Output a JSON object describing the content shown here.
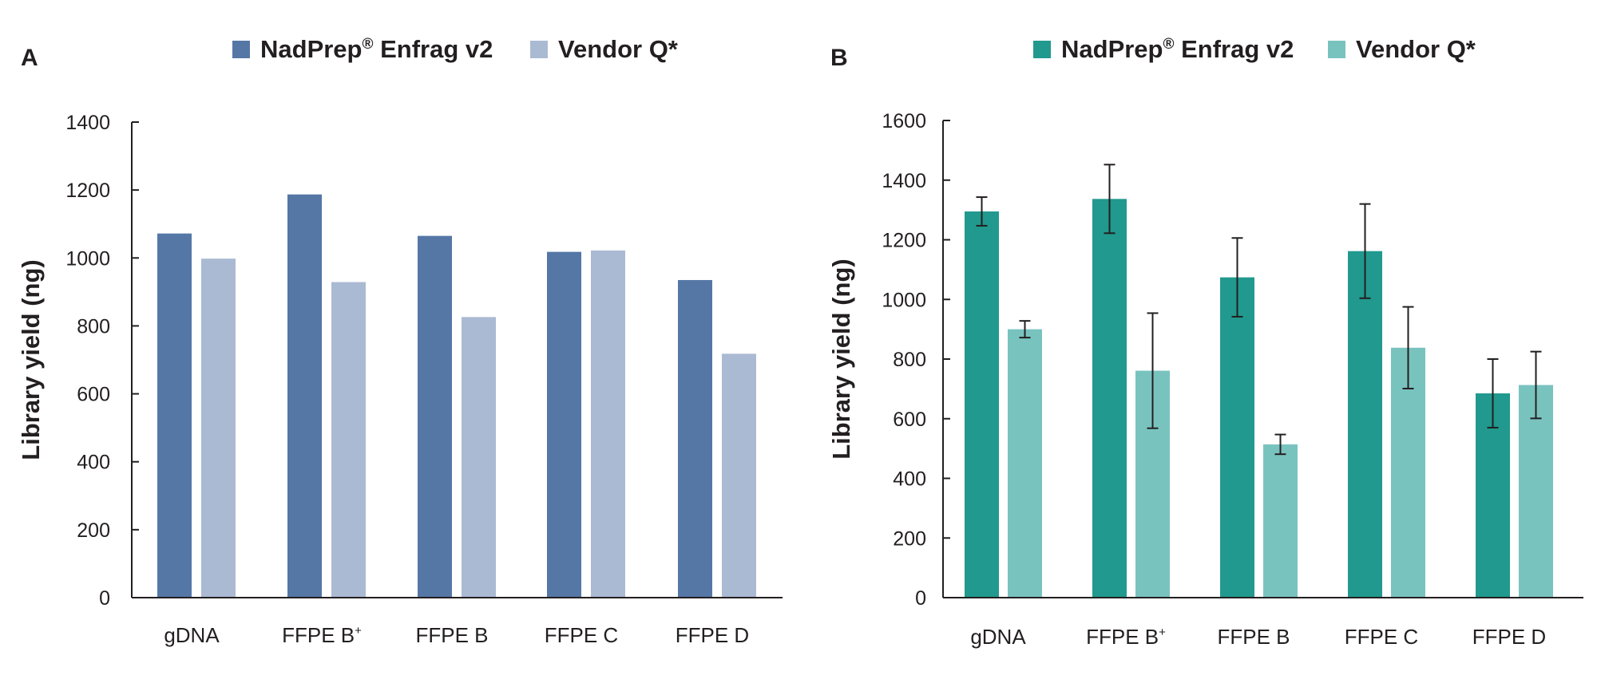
{
  "chart_data": [
    {
      "panel": "A",
      "type": "bar",
      "title": "",
      "xlabel": "",
      "ylabel": "Library yield (ng)",
      "ylim": [
        0,
        1400
      ],
      "yticks": [
        0,
        200,
        400,
        600,
        800,
        1000,
        1200,
        1400
      ],
      "grid": false,
      "legend_position": "top-center",
      "categories": [
        "gDNA",
        "FFPE B",
        "FFPE B",
        "FFPE C",
        "FFPE D"
      ],
      "category_superscripts": [
        "",
        "+",
        "",
        "",
        ""
      ],
      "series": [
        {
          "name": "NadPrep",
          "name_superscript": "®",
          "name_suffix": " Enfrag v2",
          "color": "#5577a6",
          "values": [
            1072,
            1187,
            1065,
            1018,
            935
          ]
        },
        {
          "name": "Vendor Q*",
          "name_superscript": "",
          "name_suffix": "",
          "color": "#abbad3",
          "values": [
            998,
            929,
            826,
            1022,
            718
          ]
        }
      ]
    },
    {
      "panel": "B",
      "type": "bar",
      "title": "",
      "xlabel": "",
      "ylabel": "Library yield (ng)",
      "ylim": [
        0,
        1600
      ],
      "yticks": [
        0,
        200,
        400,
        600,
        800,
        1000,
        1200,
        1400,
        1600
      ],
      "grid": false,
      "legend_position": "top-center",
      "categories": [
        "gDNA",
        "FFPE B",
        "FFPE B",
        "FFPE C",
        "FFPE D"
      ],
      "category_superscripts": [
        "",
        "+",
        "",
        "",
        ""
      ],
      "series": [
        {
          "name": "NadPrep",
          "name_superscript": "®",
          "name_suffix": " Enfrag v2",
          "color": "#21998e",
          "values": [
            1295,
            1337,
            1074,
            1162,
            685
          ],
          "errors": [
            48,
            115,
            132,
            158,
            115
          ]
        },
        {
          "name": "Vendor Q*",
          "name_superscript": "",
          "name_suffix": "",
          "color": "#79c3bf",
          "values": [
            900,
            761,
            514,
            838,
            713
          ],
          "errors": [
            28,
            193,
            33,
            137,
            112
          ]
        }
      ]
    }
  ]
}
